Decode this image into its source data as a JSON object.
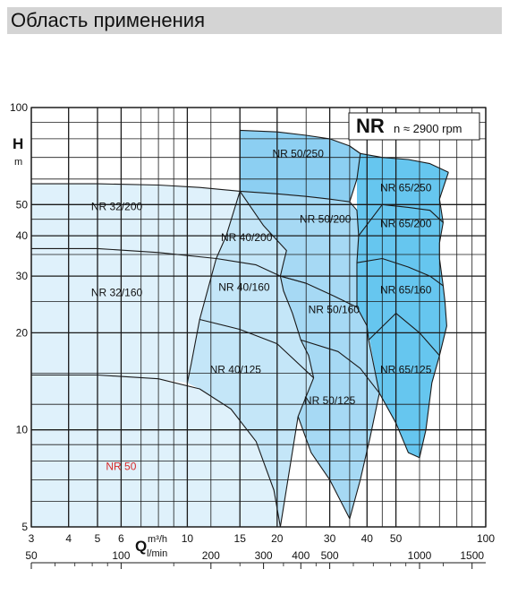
{
  "header": {
    "title": "Область применения"
  },
  "chart_data": {
    "type": "area",
    "brand": "NR",
    "speed_label": "n ≈ 2900 rpm",
    "y_axis": {
      "label": "H",
      "unit": "m",
      "scale": "log",
      "range": [
        5,
        100
      ],
      "ticks": [
        5,
        10,
        20,
        30,
        40,
        50,
        100
      ],
      "gridlines": [
        5,
        6,
        7,
        8,
        9,
        10,
        12,
        15,
        20,
        25,
        30,
        35,
        40,
        45,
        50,
        60,
        70,
        80,
        90,
        100
      ]
    },
    "x_axis": {
      "label": "Q",
      "unit_primary": "m³/h",
      "unit_secondary": "l/min",
      "scale": "log",
      "range": [
        3,
        100
      ],
      "ticks_primary": [
        3,
        4,
        5,
        6,
        10,
        15,
        20,
        30,
        40,
        50,
        100
      ],
      "ticks_secondary": [
        50,
        100,
        200,
        300,
        400,
        500,
        1000,
        1500
      ],
      "gridlines": [
        3,
        4,
        5,
        6,
        7,
        8,
        9,
        10,
        12,
        15,
        20,
        25,
        30,
        35,
        40,
        45,
        50,
        60,
        70,
        80,
        90,
        100
      ]
    },
    "grid": true,
    "colors": {
      "band1": "#dff1fb",
      "band2": "#c4e6f8",
      "band3": "#a6d9f4",
      "band4": "#8ccff2",
      "band5": "#66c6ef",
      "highlight_label": "#d62b2b",
      "line": "#1a1a1a"
    },
    "regions": [
      {
        "name": "NR 50",
        "fill": "band1",
        "highlight": true,
        "label_at": [
          6,
          7.5
        ],
        "polygon": [
          [
            3,
            5
          ],
          [
            3,
            14.8
          ],
          [
            5,
            14.8
          ],
          [
            8,
            14.4
          ],
          [
            11,
            13.4
          ],
          [
            14,
            11.6
          ],
          [
            17,
            9.2
          ],
          [
            19.5,
            6.5
          ],
          [
            20.5,
            5
          ]
        ]
      },
      {
        "name": "NR 32/160",
        "fill": "band1",
        "label_at": [
          5.8,
          26
        ],
        "polygon": [
          [
            3,
            14.8
          ],
          [
            5,
            14.8
          ],
          [
            8,
            14.4
          ],
          [
            10,
            14
          ],
          [
            10.3,
            16
          ],
          [
            11,
            22
          ],
          [
            12.5,
            34
          ],
          [
            8,
            35.5
          ],
          [
            5,
            36.5
          ],
          [
            3,
            36.5
          ]
        ]
      },
      {
        "name": "NR 32/200",
        "fill": "band1",
        "label_at": [
          5.8,
          48
        ],
        "polygon": [
          [
            3,
            36.5
          ],
          [
            5,
            36.5
          ],
          [
            8,
            35.5
          ],
          [
            12.5,
            34
          ],
          [
            13.5,
            40
          ],
          [
            15,
            55
          ],
          [
            11,
            56.5
          ],
          [
            8,
            57.5
          ],
          [
            5,
            58
          ],
          [
            3,
            58
          ]
        ]
      },
      {
        "name": "NR 40/125",
        "fill": "band2",
        "label_at": [
          14.5,
          15
        ],
        "polygon": [
          [
            10,
            14
          ],
          [
            11,
            13.4
          ],
          [
            14,
            11.6
          ],
          [
            17,
            9.2
          ],
          [
            19.5,
            6.5
          ],
          [
            20.5,
            5
          ],
          [
            23.5,
            11
          ],
          [
            26.5,
            14.5
          ],
          [
            20,
            18.5
          ],
          [
            15,
            20.5
          ],
          [
            11,
            22
          ],
          [
            10.3,
            16
          ]
        ]
      },
      {
        "name": "NR 40/160",
        "fill": "band2",
        "label_at": [
          15.5,
          27
        ],
        "polygon": [
          [
            11,
            22
          ],
          [
            15,
            20.5
          ],
          [
            20,
            18.5
          ],
          [
            26.5,
            14.5
          ],
          [
            25.5,
            17
          ],
          [
            24,
            19
          ],
          [
            22.5,
            23
          ],
          [
            21,
            27
          ],
          [
            20.5,
            30
          ],
          [
            17,
            32.5
          ],
          [
            12.5,
            34
          ]
        ]
      },
      {
        "name": "NR 40/200",
        "fill": "band2",
        "label_at": [
          15.8,
          38.5
        ],
        "polygon": [
          [
            12.5,
            34
          ],
          [
            17,
            32.5
          ],
          [
            20.5,
            30
          ],
          [
            21,
            33
          ],
          [
            21.5,
            36
          ],
          [
            18,
            43
          ],
          [
            15,
            55
          ],
          [
            13.5,
            40
          ]
        ]
      },
      {
        "name": "NR 50/125",
        "fill": "band3",
        "label_at": [
          30,
          12
        ],
        "polygon": [
          [
            20.5,
            5
          ],
          [
            23.5,
            11
          ],
          [
            26.5,
            14.5
          ],
          [
            25.5,
            17
          ],
          [
            24,
            19
          ],
          [
            32,
            17.5
          ],
          [
            38,
            15.5
          ],
          [
            44,
            13
          ],
          [
            41,
            9.5
          ],
          [
            38,
            7
          ],
          [
            35,
            5.3
          ],
          [
            30,
            7
          ],
          [
            26,
            8.5
          ],
          [
            23.5,
            11
          ]
        ]
      },
      {
        "name": "NR 50/160",
        "fill": "band3",
        "label_at": [
          31,
          23
        ],
        "polygon": [
          [
            24,
            19
          ],
          [
            22.5,
            23
          ],
          [
            21,
            27
          ],
          [
            20.5,
            30
          ],
          [
            25,
            28.5
          ],
          [
            31,
            26
          ],
          [
            37,
            24
          ],
          [
            40,
            21
          ],
          [
            40.5,
            19
          ],
          [
            44,
            13
          ],
          [
            38,
            15.5
          ],
          [
            32,
            17.5
          ]
        ]
      },
      {
        "name": "NR 50/200",
        "fill": "band3",
        "label_at": [
          29,
          44
        ],
        "polygon": [
          [
            20.5,
            30
          ],
          [
            21.5,
            36
          ],
          [
            18,
            43
          ],
          [
            15,
            55
          ],
          [
            20,
            54
          ],
          [
            25,
            53
          ],
          [
            30,
            52
          ],
          [
            35,
            51
          ],
          [
            37,
            48
          ],
          [
            37.5,
            40
          ],
          [
            37,
            33
          ],
          [
            37,
            24
          ],
          [
            31,
            26
          ],
          [
            25,
            28.5
          ]
        ]
      },
      {
        "name": "NR 50/250",
        "fill": "band4",
        "label_at": [
          23.5,
          70
        ],
        "polygon": [
          [
            15,
            55
          ],
          [
            15,
            85
          ],
          [
            20,
            84
          ],
          [
            25,
            82
          ],
          [
            30,
            80
          ],
          [
            35,
            76
          ],
          [
            38,
            72
          ],
          [
            37,
            60
          ],
          [
            35,
            51
          ],
          [
            30,
            52
          ],
          [
            25,
            53
          ],
          [
            20,
            54
          ]
        ]
      },
      {
        "name": "NR 65/125",
        "fill": "band5",
        "label_at": [
          54,
          15
        ],
        "polygon": [
          [
            40,
            21
          ],
          [
            44,
            13
          ],
          [
            50,
            10.5
          ],
          [
            55,
            8.5
          ],
          [
            60,
            8.2
          ],
          [
            63,
            10
          ],
          [
            66,
            14
          ],
          [
            70,
            17
          ],
          [
            60,
            20
          ],
          [
            50,
            23
          ],
          [
            40.5,
            19
          ]
        ]
      },
      {
        "name": "NR 65/160",
        "fill": "band5",
        "label_at": [
          54,
          26.5
        ],
        "polygon": [
          [
            37,
            24
          ],
          [
            40,
            21
          ],
          [
            40.5,
            19
          ],
          [
            50,
            23
          ],
          [
            60,
            20
          ],
          [
            70,
            17
          ],
          [
            74,
            21
          ],
          [
            73,
            25
          ],
          [
            72,
            28
          ],
          [
            65,
            30
          ],
          [
            55,
            32
          ],
          [
            45,
            34
          ],
          [
            37,
            33
          ]
        ]
      },
      {
        "name": "NR 65/200",
        "fill": "band5",
        "label_at": [
          54,
          42.5
        ],
        "polygon": [
          [
            37,
            33
          ],
          [
            45,
            34
          ],
          [
            55,
            32
          ],
          [
            65,
            30
          ],
          [
            72,
            28
          ],
          [
            70,
            34
          ],
          [
            70,
            38
          ],
          [
            72,
            44
          ],
          [
            65,
            48
          ],
          [
            55,
            49
          ],
          [
            45,
            50
          ],
          [
            37.5,
            40
          ]
        ]
      },
      {
        "name": "NR 65/250",
        "fill": "band5",
        "label_at": [
          54,
          55
        ],
        "polygon": [
          [
            37,
            48
          ],
          [
            37.5,
            40
          ],
          [
            45,
            50
          ],
          [
            55,
            49
          ],
          [
            65,
            48
          ],
          [
            72,
            44
          ],
          [
            70,
            52
          ],
          [
            75,
            63
          ],
          [
            65,
            67
          ],
          [
            55,
            69
          ],
          [
            45,
            70
          ],
          [
            38,
            72
          ],
          [
            37,
            60
          ]
        ]
      }
    ],
    "curves": [
      [
        [
          3,
          14.8
        ],
        [
          5,
          14.8
        ],
        [
          8,
          14.4
        ],
        [
          11,
          13.4
        ],
        [
          14,
          11.6
        ],
        [
          17,
          9.2
        ],
        [
          19.5,
          6.5
        ],
        [
          20.5,
          5
        ]
      ],
      [
        [
          10,
          14
        ],
        [
          10.3,
          16
        ],
        [
          11,
          22
        ],
        [
          12.5,
          34
        ],
        [
          13.5,
          40
        ],
        [
          15,
          55
        ]
      ],
      [
        [
          3,
          36.5
        ],
        [
          5,
          36.5
        ],
        [
          8,
          35.5
        ],
        [
          12.5,
          34
        ]
      ],
      [
        [
          3,
          58
        ],
        [
          5,
          58
        ],
        [
          8,
          57.5
        ],
        [
          11,
          56.5
        ],
        [
          15,
          55
        ]
      ],
      [
        [
          11,
          22
        ],
        [
          15,
          20.5
        ],
        [
          20,
          18.5
        ],
        [
          26.5,
          14.5
        ]
      ],
      [
        [
          12.5,
          34
        ],
        [
          17,
          32.5
        ],
        [
          20.5,
          30
        ],
        [
          25,
          28.5
        ],
        [
          31,
          26
        ],
        [
          37,
          24
        ]
      ],
      [
        [
          15,
          55
        ],
        [
          20,
          54
        ],
        [
          25,
          53
        ],
        [
          30,
          52
        ],
        [
          35,
          51
        ]
      ],
      [
        [
          20.5,
          5
        ],
        [
          23.5,
          11
        ],
        [
          26.5,
          14.5
        ],
        [
          25.5,
          17
        ],
        [
          24,
          19
        ],
        [
          22.5,
          23
        ],
        [
          21,
          27
        ],
        [
          20.5,
          30
        ],
        [
          21,
          33
        ],
        [
          21.5,
          36
        ],
        [
          18,
          43
        ],
        [
          15,
          55
        ]
      ],
      [
        [
          24,
          19
        ],
        [
          32,
          17.5
        ],
        [
          38,
          15.5
        ],
        [
          44,
          13
        ]
      ],
      [
        [
          20.5,
          30
        ],
        [
          25,
          28.5
        ]
      ],
      [
        [
          23.5,
          11
        ],
        [
          26,
          8.5
        ],
        [
          30,
          7
        ],
        [
          35,
          5.3
        ],
        [
          38,
          7
        ],
        [
          41,
          9.5
        ],
        [
          44,
          13
        ]
      ],
      [
        [
          37,
          24
        ],
        [
          40,
          21
        ],
        [
          40.5,
          19
        ],
        [
          44,
          13
        ],
        [
          50,
          10.5
        ],
        [
          55,
          8.5
        ],
        [
          60,
          8.2
        ],
        [
          63,
          10
        ],
        [
          66,
          14
        ],
        [
          70,
          17
        ]
      ],
      [
        [
          37,
          24
        ],
        [
          37,
          33
        ],
        [
          37.5,
          40
        ],
        [
          37,
          48
        ],
        [
          35,
          51
        ],
        [
          37,
          60
        ],
        [
          38,
          72
        ],
        [
          35,
          76
        ]
      ],
      [
        [
          40.5,
          19
        ],
        [
          50,
          23
        ],
        [
          60,
          20
        ],
        [
          70,
          17
        ],
        [
          74,
          21
        ],
        [
          73,
          25
        ],
        [
          72,
          28
        ],
        [
          70,
          34
        ],
        [
          70,
          38
        ],
        [
          72,
          44
        ],
        [
          70,
          52
        ],
        [
          75,
          63
        ]
      ],
      [
        [
          37,
          33
        ],
        [
          45,
          34
        ],
        [
          55,
          32
        ],
        [
          65,
          30
        ],
        [
          72,
          28
        ]
      ],
      [
        [
          37.5,
          40
        ],
        [
          45,
          50
        ],
        [
          55,
          49
        ],
        [
          65,
          48
        ],
        [
          72,
          44
        ]
      ],
      [
        [
          38,
          72
        ],
        [
          45,
          70
        ],
        [
          55,
          69
        ],
        [
          65,
          67
        ],
        [
          75,
          63
        ]
      ],
      [
        [
          15,
          55
        ],
        [
          15,
          85
        ],
        [
          20,
          84
        ],
        [
          25,
          82
        ],
        [
          30,
          80
        ],
        [
          35,
          76
        ],
        [
          38,
          72
        ]
      ]
    ],
    "label_box": {
      "brand_at": [
        38,
        95
      ],
      "speed_at": [
        49,
        93
      ]
    }
  }
}
